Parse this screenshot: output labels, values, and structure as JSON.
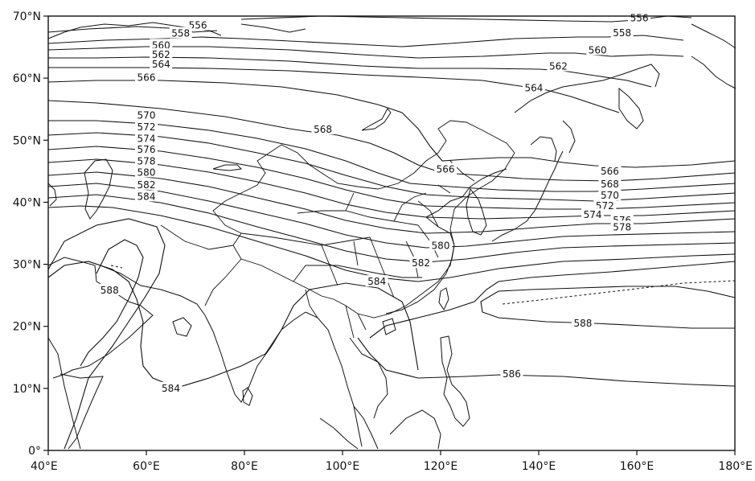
{
  "map": {
    "lon_range": [
      40,
      180
    ],
    "lat_range": [
      0,
      70
    ],
    "x_ticks": [
      {
        "value": 40,
        "label": "40°E"
      },
      {
        "value": 60,
        "label": "60°E"
      },
      {
        "value": 80,
        "label": "80°E"
      },
      {
        "value": 100,
        "label": "100°E"
      },
      {
        "value": 120,
        "label": "120°E"
      },
      {
        "value": 140,
        "label": "140°E"
      },
      {
        "value": 160,
        "label": "160°E"
      },
      {
        "value": 180,
        "label": "180°E"
      }
    ],
    "y_ticks": [
      {
        "value": 0,
        "label": "0°"
      },
      {
        "value": 10,
        "label": "10°N"
      },
      {
        "value": 20,
        "label": "20°N"
      },
      {
        "value": 30,
        "label": "30°N"
      },
      {
        "value": 40,
        "label": "40°N"
      },
      {
        "value": 50,
        "label": "50°N"
      },
      {
        "value": 60,
        "label": "60°N"
      },
      {
        "value": 70,
        "label": "70°N"
      }
    ],
    "contour_labels": [
      {
        "text": "556",
        "lon": 70.5,
        "lat": 68.5
      },
      {
        "text": "556",
        "lon": 160.5,
        "lat": 69.7
      },
      {
        "text": "558",
        "lon": 67,
        "lat": 67.2
      },
      {
        "text": "558",
        "lon": 157,
        "lat": 67.3
      },
      {
        "text": "560",
        "lon": 63,
        "lat": 65.3
      },
      {
        "text": "560",
        "lon": 152,
        "lat": 64.5
      },
      {
        "text": "562",
        "lon": 63,
        "lat": 63.8
      },
      {
        "text": "562",
        "lon": 144,
        "lat": 61.9
      },
      {
        "text": "564",
        "lon": 63,
        "lat": 62.2
      },
      {
        "text": "564",
        "lon": 139,
        "lat": 58.4
      },
      {
        "text": "566",
        "lon": 60,
        "lat": 60.1
      },
      {
        "text": "566",
        "lon": 121,
        "lat": 45.3
      },
      {
        "text": "566",
        "lon": 154.5,
        "lat": 45.0
      },
      {
        "text": "568",
        "lon": 96,
        "lat": 51.7
      },
      {
        "text": "568",
        "lon": 154.5,
        "lat": 42.9
      },
      {
        "text": "570",
        "lon": 60,
        "lat": 54.0
      },
      {
        "text": "570",
        "lon": 154.5,
        "lat": 41.1
      },
      {
        "text": "572",
        "lon": 60,
        "lat": 52.1
      },
      {
        "text": "572",
        "lon": 153.5,
        "lat": 39.4
      },
      {
        "text": "574",
        "lon": 60,
        "lat": 50.2
      },
      {
        "text": "574",
        "lon": 151,
        "lat": 38.0
      },
      {
        "text": "576",
        "lon": 60,
        "lat": 48.5
      },
      {
        "text": "576",
        "lon": 157,
        "lat": 37.1
      },
      {
        "text": "578",
        "lon": 60,
        "lat": 46.6
      },
      {
        "text": "578",
        "lon": 157,
        "lat": 36.0
      },
      {
        "text": "580",
        "lon": 60,
        "lat": 44.8
      },
      {
        "text": "580",
        "lon": 120,
        "lat": 33.0
      },
      {
        "text": "582",
        "lon": 60,
        "lat": 42.8
      },
      {
        "text": "582",
        "lon": 116,
        "lat": 30.2
      },
      {
        "text": "584",
        "lon": 60,
        "lat": 40.9
      },
      {
        "text": "584",
        "lon": 107,
        "lat": 27.2
      },
      {
        "text": "584",
        "lon": 65,
        "lat": 10.0
      },
      {
        "text": "586",
        "lon": 134.5,
        "lat": 12.3
      },
      {
        "text": "588",
        "lon": 52.5,
        "lat": 25.8
      },
      {
        "text": "588",
        "lon": 149,
        "lat": 20.5
      }
    ]
  }
}
